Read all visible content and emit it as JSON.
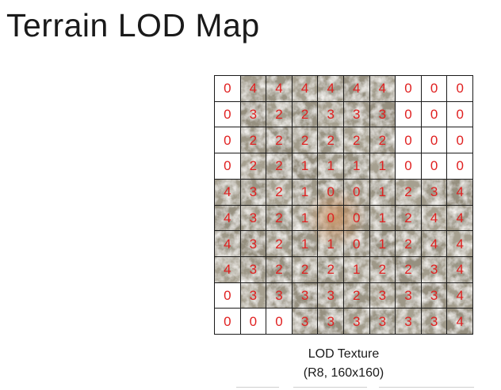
{
  "title": "Terrain LOD Map",
  "caption_line1": "LOD Texture",
  "caption_line2": "(R8, 160x160)",
  "colors": {
    "digit": "#e02020",
    "grid_line": "#1a1a1a",
    "terrain_base": "#a8a190",
    "terrain_center": "#c48a5a"
  },
  "grid": [
    [
      0,
      4,
      4,
      4,
      4,
      4,
      4,
      0,
      0,
      0
    ],
    [
      0,
      3,
      2,
      2,
      3,
      3,
      3,
      0,
      0,
      0
    ],
    [
      0,
      2,
      2,
      2,
      2,
      2,
      2,
      0,
      0,
      0
    ],
    [
      0,
      2,
      2,
      1,
      1,
      1,
      1,
      0,
      0,
      0
    ],
    [
      4,
      3,
      2,
      1,
      0,
      0,
      1,
      2,
      3,
      4
    ],
    [
      4,
      3,
      2,
      1,
      0,
      0,
      1,
      2,
      4,
      4
    ],
    [
      4,
      3,
      2,
      1,
      1,
      0,
      1,
      2,
      4,
      4
    ],
    [
      4,
      3,
      2,
      2,
      2,
      1,
      2,
      2,
      3,
      4
    ],
    [
      0,
      3,
      3,
      3,
      3,
      2,
      3,
      3,
      3,
      4
    ],
    [
      0,
      0,
      0,
      3,
      3,
      3,
      3,
      3,
      3,
      4
    ]
  ],
  "terrain_mask": [
    [
      0,
      1,
      1,
      1,
      1,
      1,
      1,
      0,
      0,
      0
    ],
    [
      0,
      1,
      1,
      1,
      1,
      1,
      1,
      0,
      0,
      0
    ],
    [
      0,
      1,
      1,
      1,
      1,
      1,
      1,
      0,
      0,
      0
    ],
    [
      0,
      1,
      1,
      1,
      1,
      1,
      1,
      0,
      0,
      0
    ],
    [
      1,
      1,
      1,
      1,
      1,
      1,
      1,
      1,
      1,
      1
    ],
    [
      1,
      1,
      1,
      1,
      1,
      1,
      1,
      1,
      1,
      1
    ],
    [
      1,
      1,
      1,
      1,
      1,
      1,
      1,
      1,
      1,
      1
    ],
    [
      1,
      1,
      1,
      1,
      1,
      1,
      1,
      1,
      1,
      1
    ],
    [
      0,
      1,
      1,
      1,
      1,
      1,
      1,
      1,
      1,
      1
    ],
    [
      0,
      0,
      0,
      1,
      1,
      1,
      1,
      1,
      1,
      1
    ]
  ]
}
